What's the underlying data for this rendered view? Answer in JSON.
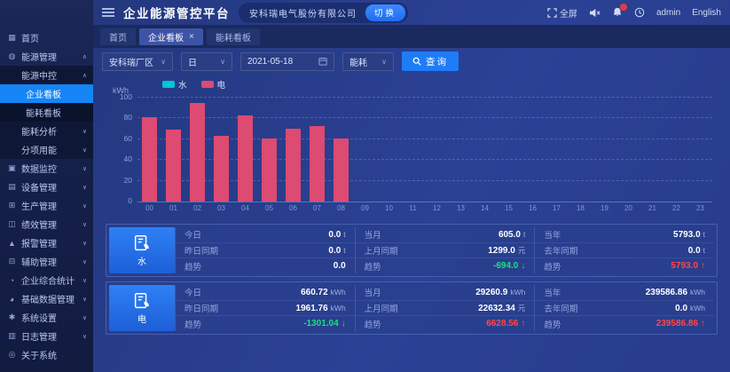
{
  "app": {
    "title": "企业能源管控平台",
    "company": "安科瑞电气股份有限公司",
    "switch_label": "切换"
  },
  "header": {
    "fullscreen_label": "全屏",
    "username": "admin",
    "language": "English",
    "icons": [
      "fullscreen-icon",
      "speaker-muted-icon",
      "bell-icon",
      "clock-icon"
    ],
    "notification_badge_color": "#e63c3c"
  },
  "tabs": [
    {
      "id": "home",
      "label": "首页",
      "active": false,
      "closable": false
    },
    {
      "id": "enterprise-board",
      "label": "企业看板",
      "active": true,
      "closable": true
    },
    {
      "id": "energy-board",
      "label": "能耗看板",
      "active": false,
      "closable": false
    }
  ],
  "filters": {
    "site": "安科瑞厂区",
    "period": "日",
    "date": "2021-05-18",
    "energy_type": "能耗",
    "query_label": "查询"
  },
  "sidebar": {
    "items": [
      {
        "id": "home",
        "label": "首页",
        "icon": "home-icon",
        "level": 0
      },
      {
        "id": "energy-mgmt",
        "label": "能源管理",
        "icon": "energy-icon",
        "level": 0,
        "chevron": "up"
      },
      {
        "id": "energy-center",
        "label": "能源中控",
        "level": 1,
        "chevron": "up"
      },
      {
        "id": "enterprise-board",
        "label": "企业看板",
        "level": 2,
        "active": true
      },
      {
        "id": "energy-board",
        "label": "能耗看板",
        "level": 2
      },
      {
        "id": "energy-analysis",
        "label": "能耗分析",
        "level": 1,
        "chevron": "down"
      },
      {
        "id": "sub-item-energy",
        "label": "分项用能",
        "level": 1,
        "chevron": "down"
      },
      {
        "id": "data-monitor",
        "label": "数据监控",
        "icon": "monitor-icon",
        "level": 0,
        "chevron": "down"
      },
      {
        "id": "device-mgmt",
        "label": "设备管理",
        "icon": "device-icon",
        "level": 0,
        "chevron": "down"
      },
      {
        "id": "production-mgmt",
        "label": "生产管理",
        "icon": "production-icon",
        "level": 0,
        "chevron": "down"
      },
      {
        "id": "performance-mgmt",
        "label": "绩效管理",
        "icon": "performance-icon",
        "level": 0,
        "chevron": "down"
      },
      {
        "id": "alarm-mgmt",
        "label": "报警管理",
        "icon": "alarm-icon",
        "level": 0,
        "chevron": "down"
      },
      {
        "id": "assist-mgmt",
        "label": "辅助管理",
        "icon": "assist-icon",
        "level": 0,
        "chevron": "down"
      },
      {
        "id": "enterprise-stats",
        "label": "企业综合统计",
        "icon": "stats-icon",
        "level": 0,
        "chevron": "down"
      },
      {
        "id": "base-data-mgmt",
        "label": "基础数据管理",
        "icon": "database-icon",
        "level": 0,
        "chevron": "down"
      },
      {
        "id": "system-settings",
        "label": "系统设置",
        "icon": "settings-icon",
        "level": 0,
        "chevron": "down"
      },
      {
        "id": "log-mgmt",
        "label": "日志管理",
        "icon": "log-icon",
        "level": 0,
        "chevron": "down"
      },
      {
        "id": "about-system",
        "label": "关于系统",
        "icon": "about-icon",
        "level": 0
      }
    ]
  },
  "chart_data": {
    "type": "bar",
    "title": "",
    "xlabel": "",
    "ylabel": "kWh",
    "ylim": [
      0,
      100
    ],
    "yticks": [
      0,
      20,
      40,
      60,
      80,
      100
    ],
    "grid": "horizontal-dashed",
    "legend_position": "top-left",
    "categories": [
      "00",
      "01",
      "02",
      "03",
      "04",
      "05",
      "06",
      "07",
      "08",
      "09",
      "10",
      "11",
      "12",
      "13",
      "14",
      "15",
      "16",
      "17",
      "18",
      "19",
      "20",
      "21",
      "22",
      "23"
    ],
    "series": [
      {
        "name": "水",
        "color": "#00c3d7",
        "values": [
          0,
          0,
          0,
          0,
          0,
          0,
          0,
          0,
          0
        ]
      },
      {
        "name": "电",
        "color": "#dd4a72",
        "values": [
          81,
          69,
          95,
          63,
          83,
          61,
          70,
          73,
          61
        ]
      }
    ]
  },
  "stats": {
    "rows": [
      {
        "name": "水",
        "icon": "water-icon",
        "cols": [
          {
            "items": [
              {
                "label": "今日",
                "value": "0.0",
                "unit": "t"
              },
              {
                "label": "昨日同期",
                "value": "0.0",
                "unit": "t"
              },
              {
                "label": "趋势",
                "value": "0.0",
                "unit": "",
                "trend": "flat"
              }
            ]
          },
          {
            "items": [
              {
                "label": "当月",
                "value": "605.0",
                "unit": "t"
              },
              {
                "label": "上月同期",
                "value": "1299.0",
                "unit": "元"
              },
              {
                "label": "趋势",
                "value": "-694.0",
                "unit": "",
                "trend": "down"
              }
            ]
          },
          {
            "items": [
              {
                "label": "当年",
                "value": "5793.0",
                "unit": "t"
              },
              {
                "label": "去年同期",
                "value": "0.0",
                "unit": "t"
              },
              {
                "label": "趋势",
                "value": "5793.0",
                "unit": "",
                "trend": "up"
              }
            ]
          }
        ]
      },
      {
        "name": "电",
        "icon": "electricity-icon",
        "cols": [
          {
            "items": [
              {
                "label": "今日",
                "value": "660.72",
                "unit": "kWh"
              },
              {
                "label": "昨日同期",
                "value": "1961.76",
                "unit": "kWh"
              },
              {
                "label": "趋势",
                "value": "-1301.04",
                "unit": "",
                "trend": "down"
              }
            ]
          },
          {
            "items": [
              {
                "label": "当月",
                "value": "29260.9",
                "unit": "kWh"
              },
              {
                "label": "上月同期",
                "value": "22632.34",
                "unit": "元"
              },
              {
                "label": "趋势",
                "value": "6628.56",
                "unit": "",
                "trend": "up"
              }
            ]
          },
          {
            "items": [
              {
                "label": "当年",
                "value": "239586.86",
                "unit": "kWh"
              },
              {
                "label": "去年同期",
                "value": "0.0",
                "unit": "kWh"
              },
              {
                "label": "趋势",
                "value": "239586.86",
                "unit": "",
                "trend": "up"
              }
            ]
          }
        ]
      }
    ]
  }
}
